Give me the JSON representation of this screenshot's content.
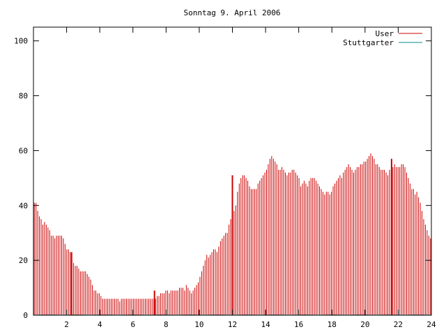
{
  "chart_data": {
    "type": "bar",
    "title": "Sonntag 9. April 2006",
    "xlabel": "",
    "ylabel": "",
    "xlim": [
      0,
      24
    ],
    "ylim": [
      0,
      105
    ],
    "x_ticks": [
      "2",
      "4",
      "6",
      "8",
      "10",
      "12",
      "14",
      "16",
      "18",
      "20",
      "22",
      "24"
    ],
    "y_ticks": [
      "0",
      "20",
      "40",
      "60",
      "80",
      "100"
    ],
    "grid": false,
    "legend_position": "top-right",
    "bar_interval_hours": 0.0833,
    "series": [
      {
        "name": "User",
        "color": "#cc0000",
        "values": [
          41,
          41,
          38,
          36,
          35,
          33,
          34,
          33,
          32,
          31,
          29,
          29,
          28,
          29,
          29,
          29,
          29,
          28,
          26,
          24,
          24,
          23,
          20,
          19,
          18,
          18,
          17,
          16,
          16,
          16,
          16,
          15,
          14,
          13,
          11,
          9,
          9,
          8,
          8,
          7,
          6,
          6,
          6,
          6,
          6,
          6,
          6,
          6,
          6,
          6,
          5,
          6,
          6,
          6,
          6,
          6,
          6,
          6,
          6,
          6,
          6,
          6,
          6,
          6,
          6,
          6,
          6,
          6,
          6,
          6,
          6,
          6,
          7,
          7,
          8,
          8,
          8,
          9,
          9,
          8,
          9,
          9,
          9,
          9,
          9,
          10,
          10,
          10,
          9,
          11,
          10,
          9,
          8,
          9,
          10,
          11,
          12,
          14,
          16,
          18,
          20,
          22,
          21,
          22,
          23,
          24,
          24,
          23,
          25,
          27,
          28,
          29,
          30,
          30,
          33,
          35,
          37,
          38,
          40,
          45,
          48,
          50,
          51,
          51,
          50,
          49,
          47,
          46,
          46,
          46,
          46,
          48,
          49,
          50,
          51,
          52,
          53,
          55,
          57,
          58,
          57,
          56,
          55,
          53,
          53,
          54,
          53,
          52,
          51,
          52,
          52,
          53,
          53,
          52,
          51,
          50,
          47,
          48,
          49,
          48,
          47,
          49,
          50,
          50,
          50,
          49,
          48,
          47,
          46,
          45,
          44,
          45,
          45,
          44,
          45,
          47,
          48,
          49,
          50,
          51,
          50,
          52,
          53,
          54,
          55,
          54,
          53,
          52,
          53,
          54,
          54,
          55,
          55,
          56,
          56,
          57,
          58,
          59,
          58,
          57,
          55,
          55,
          54,
          53,
          53,
          53,
          52,
          51,
          53,
          52,
          54,
          55,
          54,
          54,
          54,
          55,
          55,
          54,
          52,
          50,
          48,
          46,
          46,
          44,
          45,
          43,
          41,
          38,
          35,
          33,
          31,
          29,
          28
        ]
      },
      {
        "name": "Stuttgarter",
        "color": "#008b8b",
        "values": [
          0,
          0,
          0,
          0,
          0,
          0,
          0,
          0,
          0,
          0,
          0,
          0,
          0,
          0,
          0,
          0,
          0,
          0,
          0,
          0,
          0,
          0,
          0,
          0,
          0,
          0,
          0,
          0,
          0,
          0,
          0,
          0,
          0,
          0,
          0,
          0,
          0,
          0,
          0,
          0,
          0,
          0,
          0,
          0,
          0,
          0,
          0,
          0,
          0,
          0,
          0,
          0,
          0,
          0,
          0,
          0,
          0,
          0,
          0,
          0,
          0,
          0,
          0,
          0,
          0,
          0,
          0,
          0,
          0,
          0,
          0,
          0,
          0,
          0,
          0,
          0,
          0,
          0,
          0,
          0,
          0,
          0,
          0,
          0,
          0,
          0,
          0,
          0,
          0,
          0,
          0,
          0,
          0,
          0,
          0,
          0,
          0,
          0,
          0,
          0,
          0,
          0,
          0,
          0,
          0,
          0,
          0,
          0,
          0,
          0,
          0,
          0,
          0,
          0,
          0,
          0,
          0,
          0,
          0,
          0,
          0,
          0,
          0,
          0,
          0,
          0,
          0,
          0,
          0,
          0,
          0,
          0,
          0,
          0,
          0,
          0,
          0,
          0,
          0,
          0,
          0,
          0,
          0,
          0,
          0,
          0,
          0,
          0,
          0,
          0,
          0,
          0,
          0,
          0,
          0,
          0,
          0,
          0,
          0,
          0,
          0,
          0,
          0,
          0,
          0,
          0,
          0,
          0,
          0,
          0,
          0,
          0,
          0,
          0,
          0,
          0,
          0,
          0,
          0,
          0,
          0,
          0,
          0,
          0,
          0,
          0,
          0,
          0,
          0,
          0,
          0,
          0,
          0,
          0,
          0,
          0,
          0,
          0,
          0,
          0,
          0,
          0,
          0,
          0,
          0,
          0,
          0,
          0,
          0,
          0,
          0,
          0,
          0,
          0,
          0,
          0,
          0,
          0,
          0,
          0,
          0,
          0,
          0,
          0,
          0,
          0,
          0,
          0,
          0,
          0,
          0,
          0,
          0,
          0,
          0,
          0,
          0,
          0,
          0,
          0,
          0,
          0,
          0,
          0,
          0,
          0,
          0
        ]
      }
    ],
    "spikes": [
      {
        "x": 2.3,
        "value": 23
      },
      {
        "x": 7.3,
        "value": 9
      },
      {
        "x": 12.0,
        "value": 51
      },
      {
        "x": 21.6,
        "value": 57
      }
    ]
  }
}
